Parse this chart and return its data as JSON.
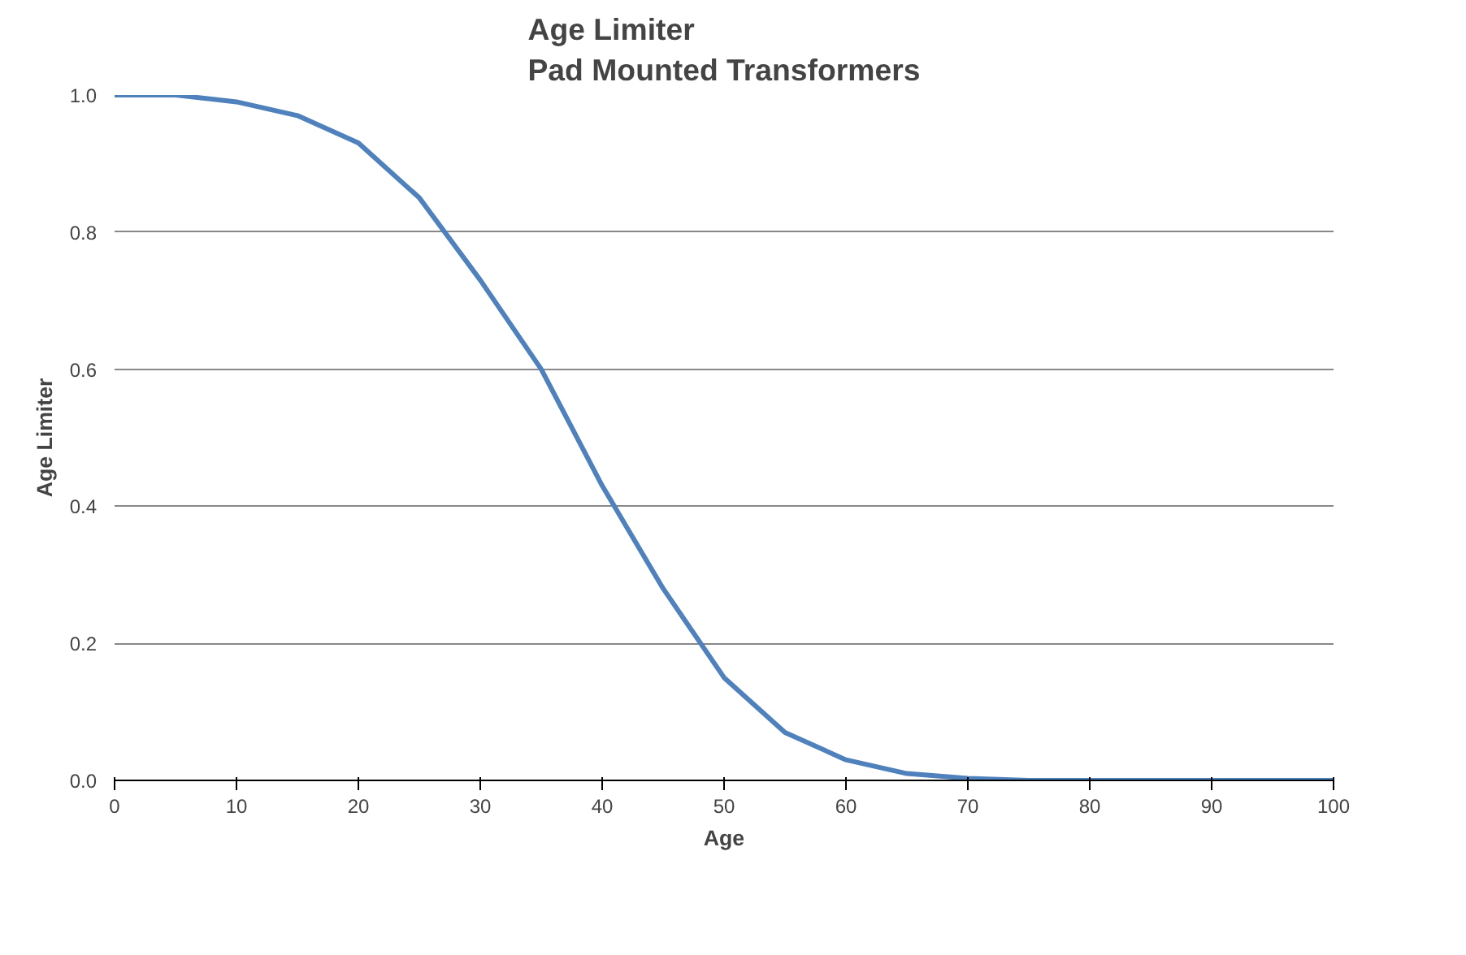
{
  "chart_data": {
    "type": "line",
    "title": "Age Limiter\nPad Mounted Transformers",
    "xlabel": "Age",
    "ylabel": "Age Limiter",
    "x": [
      0,
      5,
      10,
      15,
      20,
      25,
      30,
      35,
      40,
      45,
      50,
      55,
      60,
      65,
      70,
      75,
      80,
      90,
      100
    ],
    "series": [
      {
        "color": "#4f81bd",
        "values": [
          1.0,
          1.0,
          0.99,
          0.97,
          0.93,
          0.85,
          0.73,
          0.6,
          0.43,
          0.28,
          0.15,
          0.07,
          0.03,
          0.01,
          0.003,
          0,
          0,
          0,
          0
        ]
      }
    ],
    "xlim": [
      0,
      100
    ],
    "ylim": [
      0,
      1.0
    ],
    "xticks": [
      0,
      10,
      20,
      30,
      40,
      50,
      60,
      70,
      80,
      90,
      100
    ],
    "yticks": [
      {
        "value": 0,
        "label": "0.0"
      },
      {
        "value": 0.2,
        "label": "0.2"
      },
      {
        "value": 0.4,
        "label": "0.4"
      },
      {
        "value": 0.6,
        "label": "0.6"
      },
      {
        "value": 0.8,
        "label": "0.8"
      },
      {
        "value": 1.0,
        "label": "1.0"
      }
    ],
    "grid": "y",
    "marker": "none",
    "line_style": "solid"
  }
}
